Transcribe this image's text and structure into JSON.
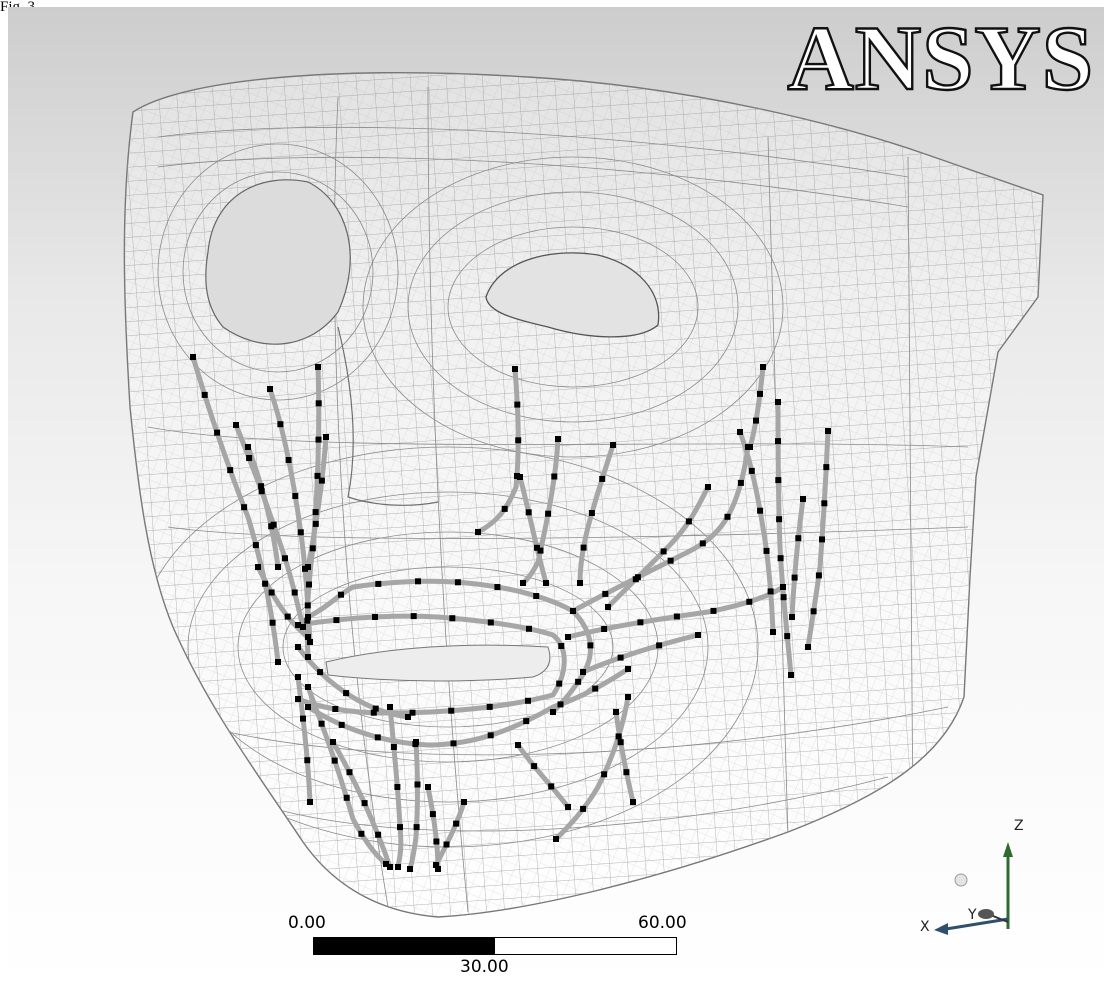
{
  "figure_label": "Fig. 3",
  "logo": {
    "text": "ANSYS"
  },
  "scale_bar": {
    "min_label": "0.00",
    "max_label": "60.00",
    "mid_label": "30.00",
    "min_value": 0,
    "max_value": 60,
    "filled_value": 30
  },
  "triad": {
    "z_label": "Z",
    "x_label": "X",
    "y_label": "Y"
  },
  "colors": {
    "mesh": "#8f8f8f",
    "muscle": "#a6a6a6",
    "node": "#000000",
    "background_top": "#cdcdcd",
    "background_bottom": "#ffffff",
    "triad_green": "#2f6b2f"
  },
  "icons": [
    "ansys-logo",
    "coordinate-triad-icon",
    "scale-bar"
  ]
}
